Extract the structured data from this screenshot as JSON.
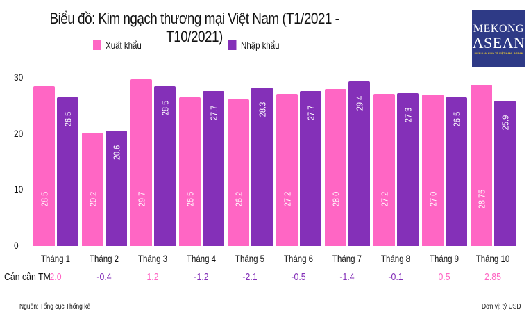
{
  "header": {
    "title": "Biểu đồ: Kim ngạch thương mại Việt Nam (T1/2021 - T10/2021)"
  },
  "legend": [
    {
      "label": "Xuất khẩu",
      "color": "#FF66C4"
    },
    {
      "label": "Nhập khẩu",
      "color": "#8430B8"
    }
  ],
  "logo": {
    "line1": "MEKONG",
    "line2": "ASEAN",
    "tagline": "DIỄN ĐÀN KINH TẾ VIỆT NAM - ASEAN",
    "bg_color": "#2E3A86"
  },
  "chart_data": {
    "type": "bar",
    "title": "Biểu đồ: Kim ngạch thương mại Việt Nam (T1/2021 - T10/2021)",
    "xlabel": "",
    "ylabel": "",
    "ylim": [
      0,
      30
    ],
    "yticks": [
      0,
      10,
      20,
      30
    ],
    "grid": false,
    "legend_position": "top",
    "categories": [
      "Tháng 1",
      "Tháng 2",
      "Tháng 3",
      "Tháng 4",
      "Tháng 5",
      "Tháng 6",
      "Tháng 7",
      "Tháng 8",
      "Tháng 9",
      "Tháng 10"
    ],
    "series": [
      {
        "name": "Xuất khẩu",
        "color": "#FF66C4",
        "values": [
          28.5,
          20.2,
          29.7,
          26.5,
          26.2,
          27.2,
          28.0,
          27.2,
          27.0,
          28.75
        ],
        "labels": [
          "28.5",
          "20.2",
          "29.7",
          "26.5",
          "26.2",
          "27.2",
          "28.0",
          "27.2",
          "27.0",
          "28.75"
        ]
      },
      {
        "name": "Nhập khẩu",
        "color": "#8430B8",
        "values": [
          26.5,
          20.6,
          28.5,
          27.7,
          28.3,
          27.7,
          29.4,
          27.3,
          26.5,
          25.9
        ],
        "labels": [
          "26.5",
          "20.6",
          "28.5",
          "27.7",
          "28.3",
          "27.7",
          "29.4",
          "27.3",
          "26.5",
          "25.9"
        ]
      }
    ],
    "balance": {
      "label": "Cán cân TM",
      "values": [
        "2.0",
        "-0.4",
        "1.2",
        "-1.2",
        "-2.1",
        "-0.5",
        "-1.4",
        "-0.1",
        "0.5",
        "2.85"
      ]
    },
    "annotations": {
      "source": "Nguồn:  Tổng cục Thống kê",
      "unit": "Đơn vị: tỷ USD"
    }
  }
}
